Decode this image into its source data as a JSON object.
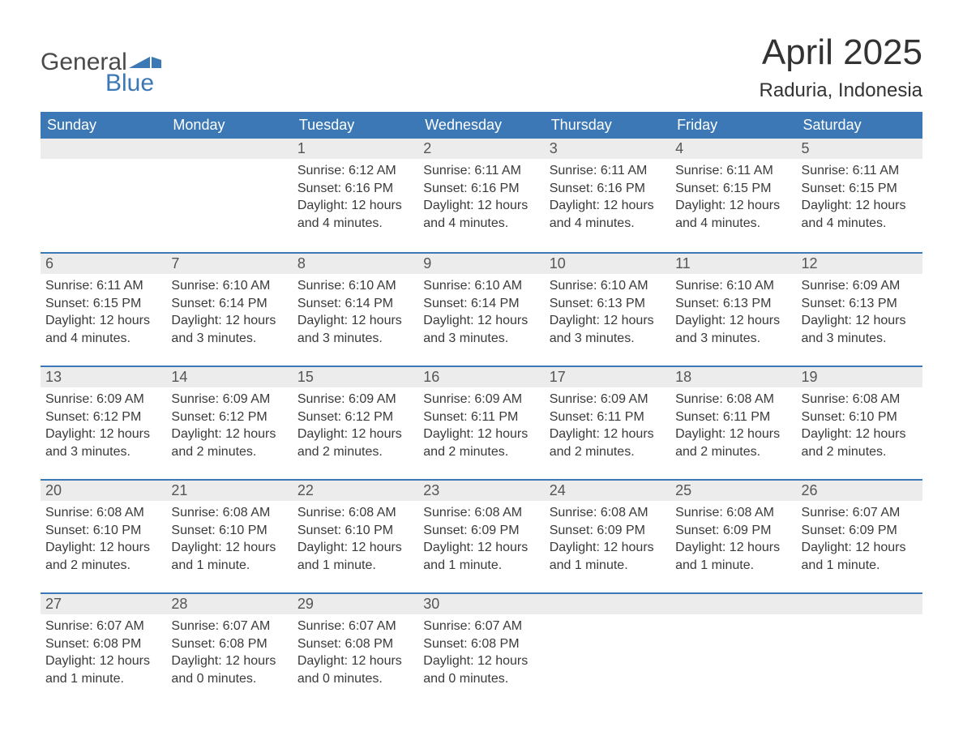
{
  "brand": {
    "word1": "General",
    "word2": "Blue",
    "shape_color": "#3b78b5"
  },
  "title": "April 2025",
  "location": "Raduria, Indonesia",
  "colors": {
    "header_bg": "#3b78b5",
    "header_text": "#ffffff",
    "daynum_bg": "#ececec",
    "text": "#3a3a3a",
    "rule": "#3b78b5"
  },
  "day_headers": [
    "Sunday",
    "Monday",
    "Tuesday",
    "Wednesday",
    "Thursday",
    "Friday",
    "Saturday"
  ],
  "weeks": [
    [
      {
        "n": "",
        "sr": "",
        "ss": "",
        "dl": ""
      },
      {
        "n": "",
        "sr": "",
        "ss": "",
        "dl": ""
      },
      {
        "n": "1",
        "sr": "6:12 AM",
        "ss": "6:16 PM",
        "dl": "12 hours and 4 minutes."
      },
      {
        "n": "2",
        "sr": "6:11 AM",
        "ss": "6:16 PM",
        "dl": "12 hours and 4 minutes."
      },
      {
        "n": "3",
        "sr": "6:11 AM",
        "ss": "6:16 PM",
        "dl": "12 hours and 4 minutes."
      },
      {
        "n": "4",
        "sr": "6:11 AM",
        "ss": "6:15 PM",
        "dl": "12 hours and 4 minutes."
      },
      {
        "n": "5",
        "sr": "6:11 AM",
        "ss": "6:15 PM",
        "dl": "12 hours and 4 minutes."
      }
    ],
    [
      {
        "n": "6",
        "sr": "6:11 AM",
        "ss": "6:15 PM",
        "dl": "12 hours and 4 minutes."
      },
      {
        "n": "7",
        "sr": "6:10 AM",
        "ss": "6:14 PM",
        "dl": "12 hours and 3 minutes."
      },
      {
        "n": "8",
        "sr": "6:10 AM",
        "ss": "6:14 PM",
        "dl": "12 hours and 3 minutes."
      },
      {
        "n": "9",
        "sr": "6:10 AM",
        "ss": "6:14 PM",
        "dl": "12 hours and 3 minutes."
      },
      {
        "n": "10",
        "sr": "6:10 AM",
        "ss": "6:13 PM",
        "dl": "12 hours and 3 minutes."
      },
      {
        "n": "11",
        "sr": "6:10 AM",
        "ss": "6:13 PM",
        "dl": "12 hours and 3 minutes."
      },
      {
        "n": "12",
        "sr": "6:09 AM",
        "ss": "6:13 PM",
        "dl": "12 hours and 3 minutes."
      }
    ],
    [
      {
        "n": "13",
        "sr": "6:09 AM",
        "ss": "6:12 PM",
        "dl": "12 hours and 3 minutes."
      },
      {
        "n": "14",
        "sr": "6:09 AM",
        "ss": "6:12 PM",
        "dl": "12 hours and 2 minutes."
      },
      {
        "n": "15",
        "sr": "6:09 AM",
        "ss": "6:12 PM",
        "dl": "12 hours and 2 minutes."
      },
      {
        "n": "16",
        "sr": "6:09 AM",
        "ss": "6:11 PM",
        "dl": "12 hours and 2 minutes."
      },
      {
        "n": "17",
        "sr": "6:09 AM",
        "ss": "6:11 PM",
        "dl": "12 hours and 2 minutes."
      },
      {
        "n": "18",
        "sr": "6:08 AM",
        "ss": "6:11 PM",
        "dl": "12 hours and 2 minutes."
      },
      {
        "n": "19",
        "sr": "6:08 AM",
        "ss": "6:10 PM",
        "dl": "12 hours and 2 minutes."
      }
    ],
    [
      {
        "n": "20",
        "sr": "6:08 AM",
        "ss": "6:10 PM",
        "dl": "12 hours and 2 minutes."
      },
      {
        "n": "21",
        "sr": "6:08 AM",
        "ss": "6:10 PM",
        "dl": "12 hours and 1 minute."
      },
      {
        "n": "22",
        "sr": "6:08 AM",
        "ss": "6:10 PM",
        "dl": "12 hours and 1 minute."
      },
      {
        "n": "23",
        "sr": "6:08 AM",
        "ss": "6:09 PM",
        "dl": "12 hours and 1 minute."
      },
      {
        "n": "24",
        "sr": "6:08 AM",
        "ss": "6:09 PM",
        "dl": "12 hours and 1 minute."
      },
      {
        "n": "25",
        "sr": "6:08 AM",
        "ss": "6:09 PM",
        "dl": "12 hours and 1 minute."
      },
      {
        "n": "26",
        "sr": "6:07 AM",
        "ss": "6:09 PM",
        "dl": "12 hours and 1 minute."
      }
    ],
    [
      {
        "n": "27",
        "sr": "6:07 AM",
        "ss": "6:08 PM",
        "dl": "12 hours and 1 minute."
      },
      {
        "n": "28",
        "sr": "6:07 AM",
        "ss": "6:08 PM",
        "dl": "12 hours and 0 minutes."
      },
      {
        "n": "29",
        "sr": "6:07 AM",
        "ss": "6:08 PM",
        "dl": "12 hours and 0 minutes."
      },
      {
        "n": "30",
        "sr": "6:07 AM",
        "ss": "6:08 PM",
        "dl": "12 hours and 0 minutes."
      },
      {
        "n": "",
        "sr": "",
        "ss": "",
        "dl": ""
      },
      {
        "n": "",
        "sr": "",
        "ss": "",
        "dl": ""
      },
      {
        "n": "",
        "sr": "",
        "ss": "",
        "dl": ""
      }
    ]
  ],
  "labels": {
    "sunrise": "Sunrise: ",
    "sunset": "Sunset: ",
    "daylight": "Daylight: "
  }
}
